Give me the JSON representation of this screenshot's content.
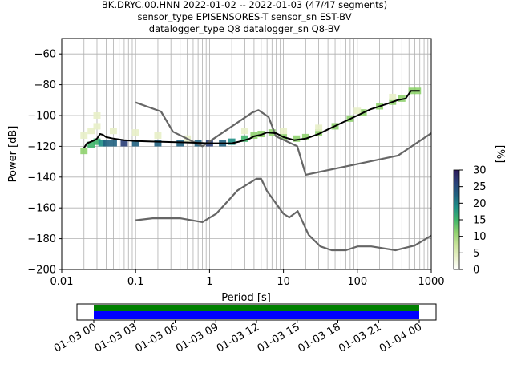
{
  "chart_data": {
    "type": "ppsd",
    "title_lines": [
      "BK.DRYC.00.HNN   2022-01-02 -- 2022-01-03  (47/47 segments)",
      "sensor_type EPISENSORES-T sensor_sn EST-BV",
      "datalogger_type Q8 datalogger_sn Q8-BV"
    ],
    "xlabel": "Period [s]",
    "ylabel": "Power [dB]",
    "xscale": "log",
    "xlim": [
      0.01,
      1000
    ],
    "ylim": [
      -200,
      -50
    ],
    "x_ticks": [
      {
        "value": 0.01,
        "label": "0.01"
      },
      {
        "value": 0.1,
        "label": "0.1"
      },
      {
        "value": 1,
        "label": "1"
      },
      {
        "value": 10,
        "label": "10"
      },
      {
        "value": 100,
        "label": "100"
      },
      {
        "value": 1000,
        "label": "1000"
      }
    ],
    "y_ticks": [
      {
        "value": -60,
        "label": "−60"
      },
      {
        "value": -80,
        "label": "−80"
      },
      {
        "value": -100,
        "label": "−100"
      },
      {
        "value": -120,
        "label": "−120"
      },
      {
        "value": -140,
        "label": "−140"
      },
      {
        "value": -160,
        "label": "−160"
      },
      {
        "value": -180,
        "label": "−180"
      },
      {
        "value": -200,
        "label": "−200"
      }
    ],
    "grid": true,
    "colorbar": {
      "label": "[%]",
      "min": 0,
      "max": 30,
      "ticks": [
        {
          "value": 0,
          "label": "0"
        },
        {
          "value": 5,
          "label": "5"
        },
        {
          "value": 10,
          "label": "10"
        },
        {
          "value": 15,
          "label": "15"
        },
        {
          "value": 20,
          "label": "20"
        },
        {
          "value": 25,
          "label": "25"
        },
        {
          "value": 30,
          "label": "30"
        }
      ],
      "colors": [
        "#ffffff",
        "#e8f0c8",
        "#c8e39a",
        "#8fd16e",
        "#3fb46a",
        "#1f8f86",
        "#20607f",
        "#2a3f78",
        "#2c1b5a"
      ]
    },
    "nhnm": [
      [
        0.1,
        -168
      ],
      [
        0.17,
        -166.7
      ],
      [
        0.4,
        -166.7
      ],
      [
        0.8,
        -169.2
      ],
      [
        1.24,
        -163.7
      ],
      [
        2.4,
        -148.6
      ],
      [
        4.3,
        -141.1
      ],
      [
        5,
        -141.1
      ],
      [
        6,
        -149
      ],
      [
        10,
        -163.8
      ],
      [
        12,
        -166.2
      ],
      [
        15.6,
        -162.1
      ],
      [
        21.9,
        -177.5
      ],
      [
        31.6,
        -185
      ],
      [
        45,
        -187.5
      ],
      [
        70,
        -187.5
      ],
      [
        101,
        -185
      ],
      [
        154,
        -185
      ],
      [
        328,
        -187.5
      ],
      [
        600,
        -184.4
      ],
      [
        1000,
        -178
      ]
    ],
    "nlnm": [
      [
        0.1,
        -91.5
      ],
      [
        0.22,
        -97.4
      ],
      [
        0.32,
        -110.5
      ],
      [
        0.8,
        -120
      ],
      [
        3.8,
        -98
      ],
      [
        4.6,
        -96.5
      ],
      [
        6.3,
        -101
      ],
      [
        7.9,
        -113.5
      ],
      [
        15.4,
        -120
      ],
      [
        20,
        -138.5
      ],
      [
        354.8,
        -126
      ],
      [
        1000,
        -111.5
      ]
    ],
    "mode": [
      [
        0.02,
        -121
      ],
      [
        0.022,
        -118
      ],
      [
        0.025,
        -117
      ],
      [
        0.028,
        -116
      ],
      [
        0.03,
        -115
      ],
      [
        0.033,
        -112
      ],
      [
        0.036,
        -112.5
      ],
      [
        0.04,
        -114
      ],
      [
        0.05,
        -115
      ],
      [
        0.07,
        -116
      ],
      [
        0.1,
        -116.5
      ],
      [
        0.2,
        -117
      ],
      [
        0.5,
        -117.5
      ],
      [
        1,
        -118
      ],
      [
        2,
        -118
      ],
      [
        2.5,
        -117
      ],
      [
        3,
        -116
      ],
      [
        3.5,
        -115
      ],
      [
        4,
        -113.5
      ],
      [
        5,
        -112.5
      ],
      [
        6,
        -111
      ],
      [
        8,
        -111.5
      ],
      [
        10,
        -114
      ],
      [
        14,
        -116
      ],
      [
        20,
        -115
      ],
      [
        30,
        -112
      ],
      [
        40,
        -109
      ],
      [
        60,
        -105
      ],
      [
        100,
        -100
      ],
      [
        150,
        -96
      ],
      [
        250,
        -92.5
      ],
      [
        350,
        -90
      ],
      [
        450,
        -89
      ],
      [
        530,
        -84
      ],
      [
        700,
        -84
      ]
    ],
    "density_samples": [
      [
        0.02,
        -123,
        12
      ],
      [
        0.02,
        -113,
        4
      ],
      [
        0.025,
        -119,
        14
      ],
      [
        0.025,
        -110,
        5
      ],
      [
        0.03,
        -117,
        16
      ],
      [
        0.03,
        -100,
        5
      ],
      [
        0.035,
        -118,
        18
      ],
      [
        0.04,
        -118,
        22
      ],
      [
        0.05,
        -118,
        24
      ],
      [
        0.07,
        -118,
        25
      ],
      [
        0.1,
        -118,
        22
      ],
      [
        0.2,
        -118,
        22
      ],
      [
        0.4,
        -118,
        22
      ],
      [
        0.7,
        -118,
        24
      ],
      [
        1,
        -118,
        25
      ],
      [
        1.5,
        -118,
        22
      ],
      [
        2,
        -117,
        18
      ],
      [
        3,
        -115,
        14
      ],
      [
        4,
        -113,
        10
      ],
      [
        5,
        -112,
        10
      ],
      [
        7,
        -111,
        10
      ],
      [
        10,
        -114,
        10
      ],
      [
        15,
        -115,
        10
      ],
      [
        20,
        -114,
        10
      ],
      [
        30,
        -111,
        10
      ],
      [
        50,
        -107,
        10
      ],
      [
        80,
        -102,
        10
      ],
      [
        120,
        -98,
        10
      ],
      [
        200,
        -94,
        10
      ],
      [
        300,
        -91,
        10
      ],
      [
        400,
        -89,
        10
      ],
      [
        550,
        -84,
        10
      ],
      [
        650,
        -84,
        10
      ],
      [
        0.03,
        -107,
        5
      ],
      [
        0.05,
        -110,
        5
      ],
      [
        0.1,
        -111,
        4
      ],
      [
        0.2,
        -113,
        4
      ],
      [
        0.5,
        -115,
        4
      ],
      [
        3,
        -110,
        3
      ],
      [
        10,
        -110,
        3
      ],
      [
        30,
        -108,
        3
      ],
      [
        100,
        -97,
        3
      ],
      [
        300,
        -88,
        4
      ]
    ]
  },
  "timeline": {
    "tick_labels": [
      "01-03 00",
      "01-03 03",
      "01-03 06",
      "01-03 09",
      "01-03 12",
      "01-03 15",
      "01-03 18",
      "01-03 21",
      "01-04 00"
    ],
    "data_color": "#008000",
    "used_color": "#0000ff",
    "data_coverage": [
      0,
      1
    ],
    "used_coverage": [
      0,
      1
    ]
  }
}
